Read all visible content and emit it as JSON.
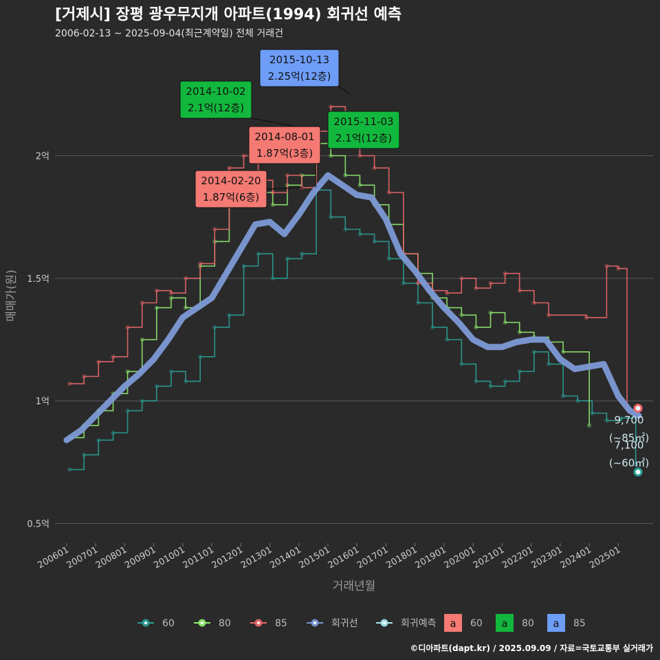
{
  "header": {
    "title": "[거제시] 장평 광우무지개 아파트(1994) 회귀선 예측",
    "subtitle": "2006-02-13 ~ 2025-09-04(최근계약일) 전체 거래건"
  },
  "caption": "©디아파트(dapt.kr) / 2025.09.09 / 자료=국토교통부 실거래가",
  "chart_data": {
    "type": "line",
    "xlabel": "거래년월",
    "ylabel": "매매가(원)",
    "x_ticks": [
      "200601",
      "200701",
      "200801",
      "200901",
      "201001",
      "201101",
      "201201",
      "201301",
      "201401",
      "201501",
      "201601",
      "201701",
      "201801",
      "201901",
      "202001",
      "202101",
      "202201",
      "202301",
      "202401",
      "202501"
    ],
    "y_ticks": [
      {
        "value": 0.5,
        "label": "0.5억"
      },
      {
        "value": 1.0,
        "label": "1억"
      },
      {
        "value": 1.5,
        "label": "1.5억"
      },
      {
        "value": 2.0,
        "label": "2억"
      }
    ],
    "xlim": [
      2005.6,
      2026.2
    ],
    "ylim": [
      0.42,
      2.45
    ],
    "grid": true,
    "legend_position": "bottom",
    "colors": {
      "s60": "#2aa198",
      "s80": "#90ee70",
      "s85": "#f0686a",
      "regression": "#7d9ad6",
      "forecast": "#a8ecef"
    },
    "series": [
      {
        "name": "60",
        "values": [
          [
            2006.1,
            0.72
          ],
          [
            2006.6,
            0.78
          ],
          [
            2007.1,
            0.84
          ],
          [
            2007.6,
            0.87
          ],
          [
            2008.1,
            0.96
          ],
          [
            2008.6,
            1.0
          ],
          [
            2009.1,
            1.06
          ],
          [
            2009.6,
            1.12
          ],
          [
            2010.1,
            1.08
          ],
          [
            2010.6,
            1.18
          ],
          [
            2011.1,
            1.3
          ],
          [
            2011.6,
            1.35
          ],
          [
            2012.1,
            1.55
          ],
          [
            2012.6,
            1.6
          ],
          [
            2013.1,
            1.5
          ],
          [
            2013.6,
            1.58
          ],
          [
            2014.1,
            1.6
          ],
          [
            2014.6,
            1.86
          ],
          [
            2015.1,
            1.75
          ],
          [
            2015.6,
            1.7
          ],
          [
            2016.1,
            1.68
          ],
          [
            2016.6,
            1.65
          ],
          [
            2017.1,
            1.58
          ],
          [
            2017.6,
            1.48
          ],
          [
            2018.1,
            1.4
          ],
          [
            2018.6,
            1.3
          ],
          [
            2019.1,
            1.25
          ],
          [
            2019.6,
            1.15
          ],
          [
            2020.1,
            1.08
          ],
          [
            2020.6,
            1.06
          ],
          [
            2021.1,
            1.08
          ],
          [
            2021.6,
            1.12
          ],
          [
            2022.1,
            1.2
          ],
          [
            2022.6,
            1.15
          ],
          [
            2023.1,
            1.02
          ],
          [
            2023.6,
            1.0
          ],
          [
            2024.1,
            0.95
          ],
          [
            2024.6,
            0.92
          ],
          [
            2025.1,
            0.93
          ],
          [
            2025.6,
            0.74
          ]
        ]
      },
      {
        "name": "80",
        "values": [
          [
            2006.1,
            0.85
          ],
          [
            2006.6,
            0.9
          ],
          [
            2007.1,
            0.96
          ],
          [
            2007.6,
            1.03
          ],
          [
            2008.1,
            1.12
          ],
          [
            2008.6,
            1.25
          ],
          [
            2009.1,
            1.38
          ],
          [
            2009.6,
            1.42
          ],
          [
            2010.1,
            1.38
          ],
          [
            2010.6,
            1.55
          ],
          [
            2011.1,
            1.65
          ],
          [
            2011.6,
            1.82
          ],
          [
            2012.1,
            1.9
          ],
          [
            2012.6,
            1.85
          ],
          [
            2013.1,
            1.8
          ],
          [
            2013.6,
            1.88
          ],
          [
            2014.1,
            1.92
          ],
          [
            2014.6,
            2.05
          ],
          [
            2015.1,
            2.0
          ],
          [
            2015.6,
            1.92
          ],
          [
            2016.1,
            1.88
          ],
          [
            2016.6,
            1.8
          ],
          [
            2017.1,
            1.72
          ],
          [
            2017.6,
            1.6
          ],
          [
            2018.1,
            1.52
          ],
          [
            2018.6,
            1.42
          ],
          [
            2019.1,
            1.38
          ],
          [
            2019.6,
            1.35
          ],
          [
            2020.1,
            1.3
          ],
          [
            2020.6,
            1.36
          ],
          [
            2021.1,
            1.32
          ],
          [
            2021.6,
            1.28
          ],
          [
            2022.1,
            1.26
          ],
          [
            2022.6,
            1.24
          ],
          [
            2023.1,
            1.2
          ],
          [
            2024.0,
            0.9
          ]
        ]
      },
      {
        "name": "85",
        "values": [
          [
            2006.1,
            1.07
          ],
          [
            2006.6,
            1.1
          ],
          [
            2007.1,
            1.16
          ],
          [
            2007.6,
            1.18
          ],
          [
            2008.1,
            1.3
          ],
          [
            2008.6,
            1.4
          ],
          [
            2009.1,
            1.45
          ],
          [
            2009.6,
            1.44
          ],
          [
            2010.1,
            1.5
          ],
          [
            2010.6,
            1.56
          ],
          [
            2011.1,
            1.7
          ],
          [
            2011.6,
            1.95
          ],
          [
            2012.1,
            2.0
          ],
          [
            2012.6,
            1.9
          ],
          [
            2013.1,
            1.85
          ],
          [
            2013.6,
            1.92
          ],
          [
            2014.1,
            1.87
          ],
          [
            2014.6,
            2.1
          ],
          [
            2015.1,
            2.2
          ],
          [
            2015.6,
            2.1
          ],
          [
            2016.1,
            2.0
          ],
          [
            2016.6,
            1.95
          ],
          [
            2017.1,
            1.85
          ],
          [
            2017.6,
            1.6
          ],
          [
            2018.1,
            1.48
          ],
          [
            2018.6,
            1.45
          ],
          [
            2019.1,
            1.44
          ],
          [
            2019.6,
            1.5
          ],
          [
            2020.1,
            1.46
          ],
          [
            2020.6,
            1.48
          ],
          [
            2021.1,
            1.52
          ],
          [
            2021.6,
            1.45
          ],
          [
            2022.1,
            1.4
          ],
          [
            2022.6,
            1.35
          ],
          [
            2023.9,
            1.34
          ],
          [
            2024.6,
            1.55
          ],
          [
            2025.0,
            1.54
          ],
          [
            2025.3,
            0.97
          ]
        ]
      },
      {
        "name": "회귀선",
        "values": [
          [
            2006.0,
            0.84
          ],
          [
            2006.5,
            0.88
          ],
          [
            2007.0,
            0.94
          ],
          [
            2007.5,
            1.0
          ],
          [
            2008.0,
            1.06
          ],
          [
            2008.5,
            1.11
          ],
          [
            2009.0,
            1.17
          ],
          [
            2009.5,
            1.25
          ],
          [
            2010.0,
            1.34
          ],
          [
            2010.5,
            1.38
          ],
          [
            2011.0,
            1.42
          ],
          [
            2011.5,
            1.52
          ],
          [
            2012.0,
            1.62
          ],
          [
            2012.5,
            1.72
          ],
          [
            2013.0,
            1.73
          ],
          [
            2013.5,
            1.68
          ],
          [
            2014.0,
            1.76
          ],
          [
            2014.5,
            1.85
          ],
          [
            2015.0,
            1.92
          ],
          [
            2015.5,
            1.88
          ],
          [
            2016.0,
            1.84
          ],
          [
            2016.5,
            1.83
          ],
          [
            2017.0,
            1.74
          ],
          [
            2017.5,
            1.6
          ],
          [
            2018.0,
            1.53
          ],
          [
            2018.5,
            1.45
          ],
          [
            2019.0,
            1.38
          ],
          [
            2019.5,
            1.32
          ],
          [
            2020.0,
            1.25
          ],
          [
            2020.5,
            1.22
          ],
          [
            2021.0,
            1.22
          ],
          [
            2021.5,
            1.24
          ],
          [
            2022.0,
            1.25
          ],
          [
            2022.5,
            1.25
          ],
          [
            2023.0,
            1.17
          ],
          [
            2023.5,
            1.13
          ],
          [
            2024.0,
            1.14
          ],
          [
            2024.5,
            1.15
          ],
          [
            2025.0,
            1.02
          ],
          [
            2025.4,
            0.96
          ],
          [
            2025.7,
            0.94
          ]
        ]
      },
      {
        "name": "회귀예측",
        "values": [
          [
            2025.68,
            0.97
          ],
          [
            2025.68,
            0.71
          ]
        ]
      }
    ],
    "annotations": [
      {
        "date": "2015-10-13",
        "text": "2.25억(12층)",
        "series": "85",
        "x": 2015.78,
        "y": 2.25
      },
      {
        "date": "2014-10-02",
        "text": "2.1억(12층)",
        "series": "80",
        "x": 2014.75,
        "y": 2.1
      },
      {
        "date": "2015-11-03",
        "text": "2.1억(12층)",
        "series": "80",
        "x": 2015.84,
        "y": 2.1
      },
      {
        "date": "2014-08-01",
        "text": "1.87억(3층)",
        "series": "60",
        "x": 2014.58,
        "y": 1.87
      },
      {
        "date": "2014-02-20",
        "text": "1.87억(6층)",
        "series": "60",
        "x": 2014.14,
        "y": 1.87
      }
    ],
    "end_labels": [
      {
        "value": "9,700",
        "area": "(~85㎡)",
        "y": 0.97
      },
      {
        "value": "7,100",
        "area": "(~60㎡)",
        "y": 0.71
      }
    ],
    "legend": {
      "lines": [
        "60",
        "80",
        "85",
        "회귀선",
        "회귀예측"
      ],
      "boxes": [
        {
          "label": "60",
          "glyph": "a"
        },
        {
          "label": "80",
          "glyph": "a"
        },
        {
          "label": "85",
          "glyph": "a"
        }
      ]
    }
  }
}
